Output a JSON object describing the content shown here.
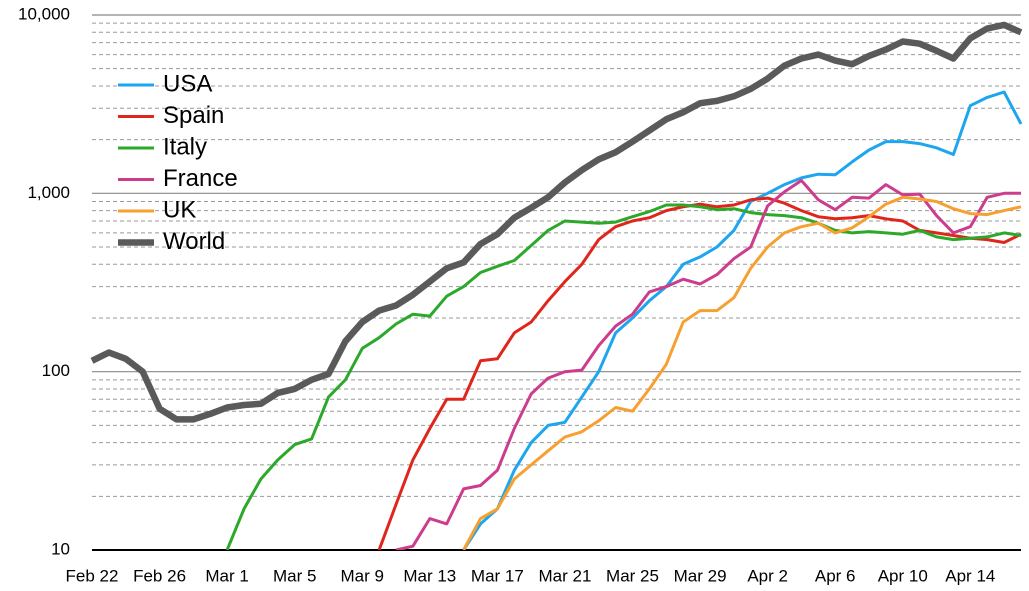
{
  "chart_data": {
    "type": "line",
    "categories": [
      "Feb 22",
      null,
      null,
      null,
      "Feb 26",
      null,
      null,
      null,
      "Mar 1",
      null,
      null,
      null,
      "Mar 5",
      null,
      null,
      null,
      "Mar 9",
      null,
      null,
      null,
      "Mar 13",
      null,
      null,
      null,
      "Mar 17",
      null,
      null,
      null,
      "Mar 21",
      null,
      null,
      null,
      "Mar 25",
      null,
      null,
      null,
      "Mar 29",
      null,
      null,
      null,
      "Apr 2",
      null,
      null,
      null,
      "Apr 6",
      null,
      null,
      null,
      "Apr 10",
      null,
      null,
      null,
      "Apr 14",
      null,
      null,
      null
    ],
    "series": [
      {
        "name": "USA",
        "color": "#1ea5f0",
        "values": [
          null,
          null,
          null,
          null,
          null,
          null,
          null,
          null,
          null,
          null,
          null,
          null,
          null,
          null,
          null,
          null,
          null,
          null,
          null,
          null,
          null,
          null,
          10,
          14,
          17,
          28,
          40,
          50,
          52,
          72,
          100,
          165,
          200,
          250,
          300,
          400,
          440,
          500,
          620,
          900,
          1000,
          1120,
          1220,
          1280,
          1270,
          1500,
          1750,
          1950,
          1950,
          1900,
          1800,
          1650,
          3100,
          3450,
          3700,
          2450
        ]
      },
      {
        "name": "Spain",
        "color": "#e0261c",
        "values": [
          null,
          null,
          null,
          null,
          null,
          null,
          null,
          null,
          null,
          null,
          null,
          null,
          null,
          null,
          null,
          null,
          null,
          10,
          18,
          32,
          48,
          70,
          70,
          115,
          118,
          165,
          190,
          250,
          320,
          400,
          550,
          650,
          700,
          730,
          800,
          840,
          870,
          840,
          860,
          920,
          940,
          880,
          800,
          740,
          720,
          730,
          750,
          720,
          700,
          620,
          600,
          580,
          560,
          550,
          530,
          590
        ]
      },
      {
        "name": "Italy",
        "color": "#2ca82a",
        "values": [
          null,
          null,
          null,
          null,
          null,
          null,
          null,
          null,
          10,
          17,
          25,
          32,
          39,
          42,
          72,
          90,
          135,
          155,
          185,
          210,
          205,
          265,
          300,
          360,
          390,
          420,
          510,
          620,
          700,
          690,
          680,
          690,
          740,
          790,
          860,
          860,
          840,
          810,
          820,
          780,
          760,
          750,
          730,
          680,
          620,
          600,
          610,
          600,
          590,
          620,
          570,
          550,
          560,
          570,
          600,
          580
        ]
      },
      {
        "name": "France",
        "color": "#cc3d8e",
        "values": [
          null,
          null,
          null,
          null,
          null,
          null,
          null,
          null,
          null,
          null,
          null,
          null,
          null,
          null,
          null,
          null,
          null,
          null,
          10,
          10.5,
          15,
          14,
          22,
          23,
          28,
          48,
          75,
          92,
          100,
          102,
          140,
          180,
          210,
          280,
          300,
          330,
          310,
          350,
          430,
          500,
          850,
          1020,
          1180,
          920,
          810,
          950,
          940,
          1120,
          980,
          990,
          750,
          600,
          650,
          950,
          1000,
          1000
        ]
      },
      {
        "name": "UK",
        "color": "#f7a030",
        "values": [
          null,
          null,
          null,
          null,
          null,
          null,
          null,
          null,
          null,
          null,
          null,
          null,
          null,
          null,
          null,
          null,
          null,
          null,
          null,
          null,
          null,
          null,
          10,
          15,
          17,
          25,
          30,
          36,
          43,
          46,
          53,
          63,
          60,
          80,
          110,
          190,
          220,
          220,
          260,
          380,
          500,
          600,
          650,
          680,
          600,
          640,
          740,
          870,
          950,
          930,
          900,
          820,
          770,
          760,
          800,
          840
        ]
      },
      {
        "name": "World",
        "color": "#5a5a5a",
        "values": [
          115,
          128,
          118,
          100,
          62,
          54,
          54,
          58,
          63,
          65,
          66,
          76,
          80,
          90,
          97,
          148,
          190,
          220,
          235,
          270,
          320,
          380,
          410,
          520,
          590,
          730,
          830,
          950,
          1150,
          1350,
          1550,
          1700,
          1950,
          2250,
          2600,
          2850,
          3200,
          3300,
          3500,
          3850,
          4400,
          5200,
          5700,
          6000,
          5550,
          5300,
          5900,
          6400,
          7100,
          6900,
          6300,
          5700,
          7400,
          8400,
          8800,
          8000
        ]
      }
    ],
    "ylim": [
      10,
      10000
    ],
    "yticks": [
      10,
      100,
      {
        "value": 1000,
        "label": "1,000"
      },
      {
        "value": 10000,
        "label": "10,000"
      }
    ],
    "yscale": "log",
    "grid": true,
    "legend": "upper left"
  }
}
